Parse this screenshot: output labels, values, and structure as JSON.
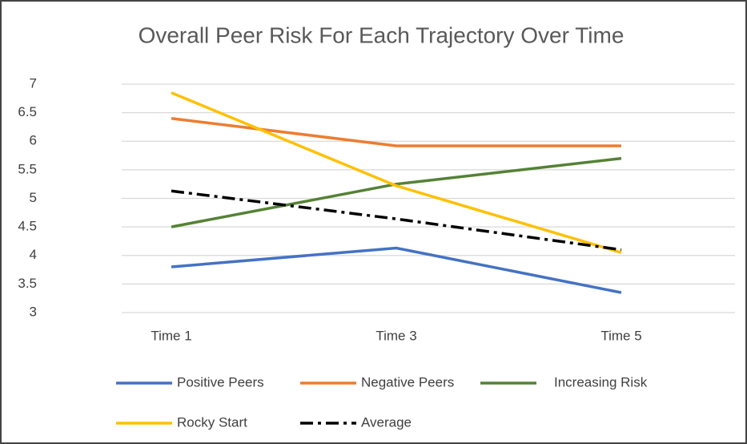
{
  "chart_data": {
    "type": "line",
    "title": "Overall Peer Risk For Each Trajectory Over Time",
    "categories": [
      "Time 1",
      "Time 3",
      "Time 5"
    ],
    "series": [
      {
        "name": "Positive Peers",
        "color": "#4472c4",
        "values": [
          3.8,
          4.13,
          3.35
        ]
      },
      {
        "name": "Negative Peers",
        "color": "#ed7d31",
        "values": [
          6.4,
          5.92,
          5.92
        ]
      },
      {
        "name": "Increasing Risk",
        "color": "#548235",
        "values": [
          4.5,
          5.25,
          5.7
        ]
      },
      {
        "name": "Rocky Start",
        "color": "#ffc000",
        "values": [
          6.85,
          5.22,
          4.05
        ]
      },
      {
        "name": "Average",
        "color": "#000000",
        "dash": "dashdot",
        "values": [
          5.13,
          4.64,
          4.1
        ]
      }
    ],
    "ylim": [
      3,
      7
    ],
    "yticks": [
      3,
      3.5,
      4,
      4.5,
      5,
      5.5,
      6,
      6.5,
      7
    ],
    "grid": true,
    "legend": "bottom"
  }
}
